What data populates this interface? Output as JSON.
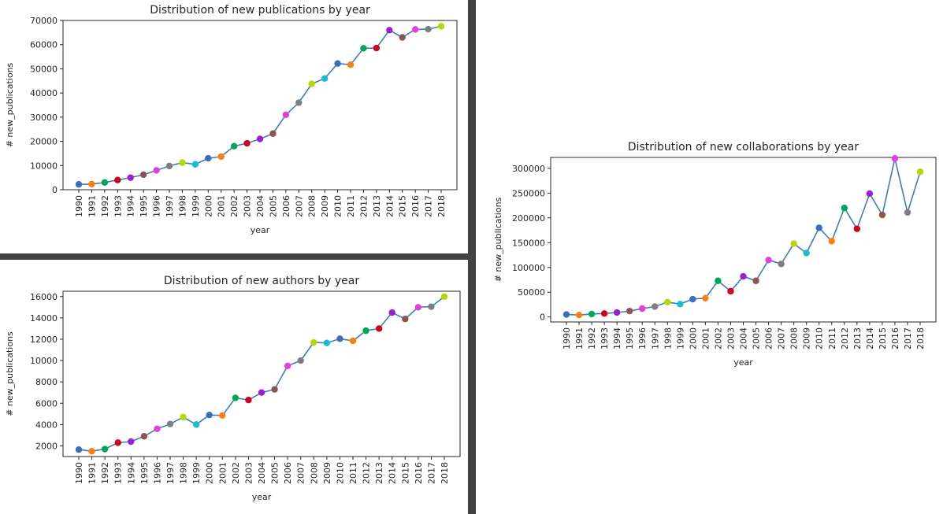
{
  "marker_colors": [
    "#3a6ebf",
    "#ff7f0e",
    "#00a651",
    "#d0021b",
    "#9b1fcf",
    "#8c564b",
    "#e040e0",
    "#7f7f7f",
    "#b5d900",
    "#17becf"
  ],
  "line_color": "#3a7dc5",
  "chart_data": [
    {
      "type": "line",
      "title": "Distribution of new publications by year",
      "xlabel": "year",
      "ylabel": "# new_publications",
      "categories": [
        "1990",
        "1991",
        "1992",
        "1993",
        "1994",
        "1995",
        "1996",
        "1997",
        "1998",
        "1999",
        "2000",
        "2001",
        "2002",
        "2003",
        "2004",
        "2005",
        "2006",
        "2007",
        "2008",
        "2009",
        "2010",
        "2011",
        "2012",
        "2013",
        "2014",
        "2015",
        "2016",
        "2017",
        "2018"
      ],
      "values": [
        2200,
        2300,
        3000,
        4000,
        5000,
        6200,
        8000,
        9800,
        11200,
        10500,
        13000,
        13700,
        18000,
        19200,
        21000,
        23200,
        31000,
        36000,
        43800,
        46000,
        52200,
        51700,
        58500,
        58600,
        66000,
        63000,
        66300,
        66400,
        67600
      ],
      "ylim": [
        0,
        70000
      ],
      "yticks": [
        "0",
        "10000",
        "20000",
        "30000",
        "40000",
        "50000",
        "60000",
        "70000"
      ],
      "grid": false
    },
    {
      "type": "line",
      "title": "Distribution of new authors by year",
      "xlabel": "year",
      "ylabel": "# new_publications",
      "categories": [
        "1990",
        "1991",
        "1992",
        "1993",
        "1994",
        "1995",
        "1996",
        "1997",
        "1998",
        "1999",
        "2000",
        "2001",
        "2002",
        "2003",
        "2004",
        "2005",
        "2006",
        "2007",
        "2008",
        "2009",
        "2010",
        "2011",
        "2012",
        "2013",
        "2014",
        "2015",
        "2016",
        "2017",
        "2018"
      ],
      "values": [
        1650,
        1500,
        1700,
        2300,
        2400,
        2900,
        3600,
        4050,
        4700,
        4000,
        4900,
        4850,
        6500,
        6300,
        7000,
        7300,
        9500,
        10000,
        11700,
        11650,
        12050,
        11850,
        12800,
        13000,
        14500,
        13900,
        15000,
        15050,
        16000
      ],
      "ylim": [
        1000,
        16500
      ],
      "yticks": [
        "2000",
        "4000",
        "6000",
        "8000",
        "10000",
        "12000",
        "14000",
        "16000"
      ],
      "grid": false
    },
    {
      "type": "line",
      "title": "Distribution of new collaborations by year",
      "xlabel": "year",
      "ylabel": "# new_publications",
      "categories": [
        "1990",
        "1991",
        "1992",
        "1993",
        "1994",
        "1995",
        "1996",
        "1997",
        "1998",
        "1999",
        "2000",
        "2001",
        "2002",
        "2003",
        "2004",
        "2005",
        "2006",
        "2007",
        "2008",
        "2009",
        "2010",
        "2011",
        "2012",
        "2013",
        "2014",
        "2015",
        "2016",
        "2017",
        "2018"
      ],
      "values": [
        5000,
        4000,
        6000,
        7000,
        9000,
        12000,
        17000,
        21000,
        30000,
        26000,
        36000,
        38000,
        73000,
        52000,
        82000,
        73000,
        115000,
        107000,
        148000,
        129000,
        180000,
        153000,
        220000,
        178000,
        249000,
        206000,
        320000,
        211000,
        293000
      ],
      "ylim": [
        -10000,
        322000
      ],
      "yticks": [
        "0",
        "50000",
        "100000",
        "150000",
        "200000",
        "250000",
        "300000"
      ],
      "grid": false
    }
  ]
}
